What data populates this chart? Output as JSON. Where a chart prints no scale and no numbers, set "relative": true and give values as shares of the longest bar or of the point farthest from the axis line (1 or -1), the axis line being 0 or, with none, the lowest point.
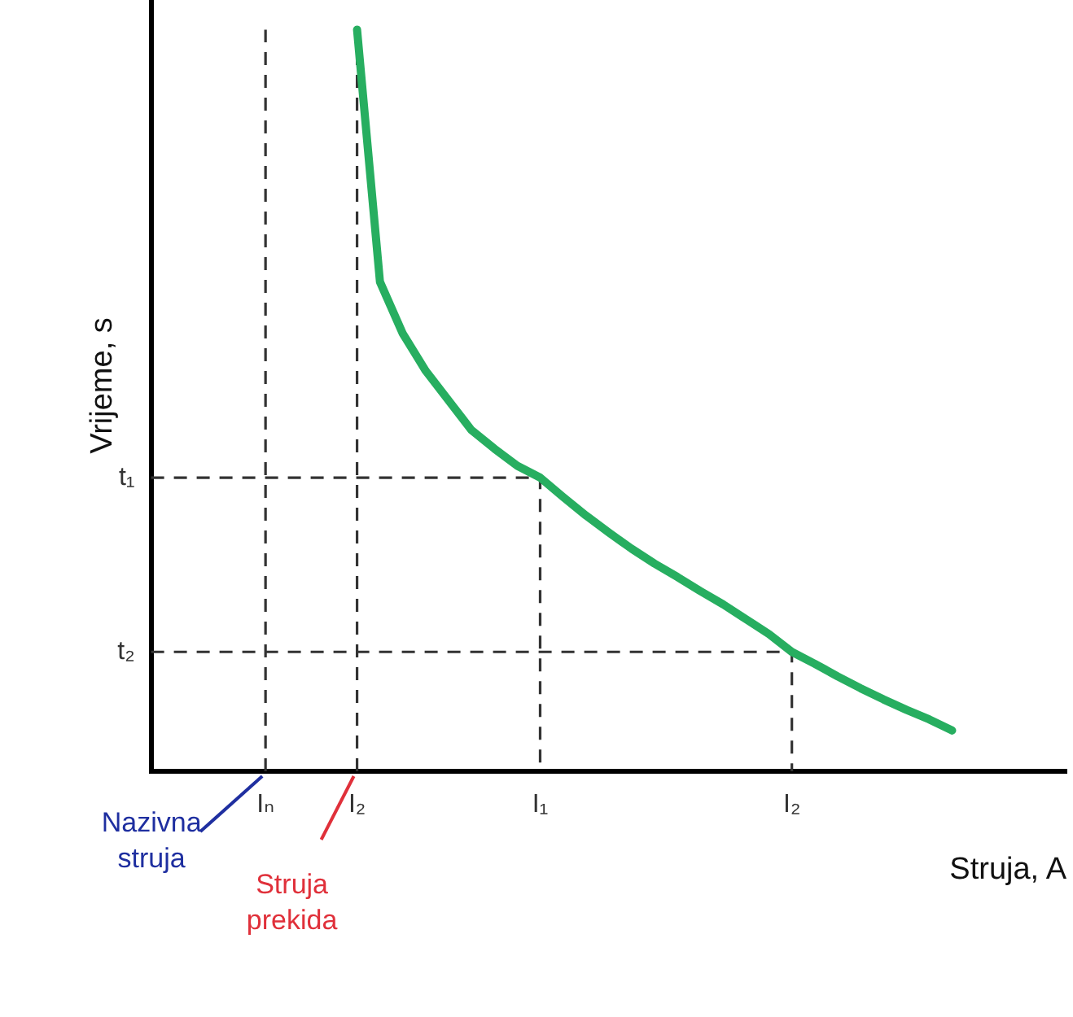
{
  "chart_data": {
    "type": "line",
    "relative": true,
    "xlabel": "Struja, A",
    "ylabel": "Vrijeme, s",
    "categories": [
      null,
      null,
      null,
      null,
      null,
      "Iₙ",
      null,
      null,
      null,
      "I₂",
      null,
      null,
      null,
      null,
      null,
      null,
      null,
      "I₁",
      null,
      null,
      null,
      null,
      null,
      null,
      null,
      null,
      null,
      null,
      "I₂",
      null,
      null,
      null,
      null,
      null,
      null,
      null,
      null,
      null,
      null,
      null,
      null
    ],
    "grid": false,
    "legend": false,
    "marker": "none",
    "series": [
      {
        "color": "#27ae60",
        "line_style": "solid",
        "values": [
          null,
          null,
          null,
          null,
          null,
          null,
          null,
          null,
          null,
          1.0,
          0.66,
          0.59,
          0.54,
          0.5,
          0.46,
          0.435,
          0.412,
          0.396,
          0.37,
          0.345,
          0.322,
          0.3,
          0.28,
          0.262,
          0.243,
          0.225,
          0.205,
          0.185,
          0.161,
          0.145,
          0.128,
          0.112,
          0.097,
          0.083,
          0.07,
          0.055,
          null,
          null,
          null,
          null,
          null
        ]
      }
    ],
    "ref_lines": [
      {
        "axis": "x",
        "value": "Iₙ",
        "color": "#333333",
        "line_style": "dashed"
      },
      {
        "axis": "x",
        "value": "I₂",
        "color": "#333333",
        "line_style": "dashed"
      },
      {
        "axis": "y",
        "value": 0.396,
        "label": "t₁",
        "color": "#333333",
        "line_style": "dashed"
      },
      {
        "axis": "y",
        "value": 0.161,
        "label": "t₂",
        "color": "#333333",
        "line_style": "dashed"
      }
    ],
    "annotations": [
      "Nazivna struja",
      "Struja prekida"
    ]
  }
}
